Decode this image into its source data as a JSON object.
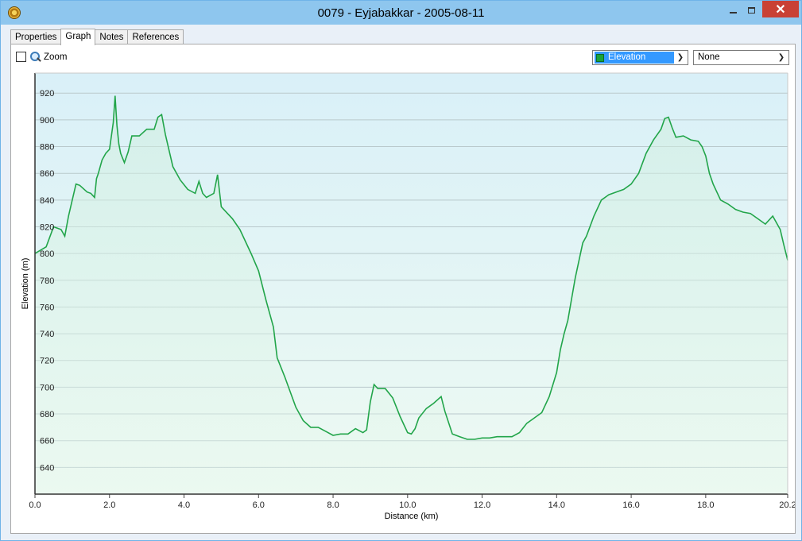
{
  "window": {
    "title": "0079 - Eyjabakkar - 2005-08-11",
    "close_glyph": "✕"
  },
  "tabs": [
    {
      "label": "Properties",
      "active": false
    },
    {
      "label": "Graph",
      "active": true
    },
    {
      "label": "Notes",
      "active": false
    },
    {
      "label": "References",
      "active": false
    }
  ],
  "toolbar": {
    "zoom_label": "Zoom",
    "zoom_checked": false,
    "primary_select": {
      "value": "Elevation",
      "swatch_color": "#1aa33a"
    },
    "secondary_select": {
      "value": "None"
    }
  },
  "chart_data": {
    "type": "area",
    "title": "",
    "xlabel": "Distance  (km)",
    "ylabel": "Elevation (m)",
    "xlim": [
      0,
      20.2
    ],
    "ylim": [
      620,
      935
    ],
    "xticks": [
      "0.0",
      "2.0",
      "4.0",
      "6.0",
      "8.0",
      "10.0",
      "12.0",
      "14.0",
      "16.0",
      "18.0",
      "20.2"
    ],
    "yticks": [
      "640",
      "660",
      "680",
      "700",
      "720",
      "740",
      "760",
      "780",
      "800",
      "820",
      "840",
      "860",
      "880",
      "900",
      "920"
    ],
    "grid": true,
    "line_color": "#22a54a",
    "background_top": "#d9f0f8",
    "background_bottom": "#eefaf2",
    "series": [
      {
        "x": [
          0.0,
          0.3,
          0.5,
          0.7,
          0.8,
          0.9,
          1.0,
          1.1,
          1.2,
          1.4,
          1.5,
          1.6,
          1.65,
          1.7,
          1.8,
          1.9,
          2.0,
          2.1,
          2.15,
          2.2,
          2.25,
          2.3,
          2.4,
          2.5,
          2.6,
          2.8,
          3.0,
          3.2,
          3.3,
          3.4,
          3.5,
          3.7,
          3.9,
          4.1,
          4.3,
          4.4,
          4.5,
          4.6,
          4.8,
          4.9,
          5.0,
          5.3,
          5.5,
          5.8,
          6.0,
          6.2,
          6.4,
          6.5,
          6.7,
          7.0,
          7.2,
          7.4,
          7.6,
          7.8,
          8.0,
          8.2,
          8.4,
          8.6,
          8.8,
          8.9,
          9.0,
          9.1,
          9.2,
          9.4,
          9.6,
          9.8,
          10.0,
          10.1,
          10.2,
          10.3,
          10.5,
          10.7,
          10.9,
          11.0,
          11.2,
          11.4,
          11.6,
          11.8,
          12.0,
          12.2,
          12.4,
          12.6,
          12.8,
          13.0,
          13.2,
          13.4,
          13.6,
          13.8,
          14.0,
          14.1,
          14.2,
          14.3,
          14.4,
          14.5,
          14.6,
          14.7,
          14.8,
          15.0,
          15.2,
          15.4,
          15.6,
          15.8,
          16.0,
          16.2,
          16.4,
          16.6,
          16.8,
          16.9,
          17.0,
          17.1,
          17.2,
          17.4,
          17.6,
          17.8,
          17.9,
          18.0,
          18.1,
          18.2,
          18.4,
          18.6,
          18.8,
          19.0,
          19.2,
          19.4,
          19.6,
          19.8,
          20.0,
          20.1,
          20.2
        ],
        "y": [
          800,
          805,
          820,
          818,
          813,
          828,
          840,
          852,
          851,
          846,
          845,
          842,
          856,
          860,
          870,
          875,
          878,
          898,
          918,
          896,
          882,
          875,
          868,
          876,
          888,
          888,
          893,
          893,
          902,
          904,
          889,
          865,
          855,
          848,
          845,
          854,
          845,
          842,
          845,
          859,
          835,
          826,
          818,
          800,
          787,
          765,
          745,
          722,
          708,
          685,
          675,
          670,
          670,
          667,
          664,
          665,
          665,
          669,
          666,
          668,
          689,
          702,
          699,
          699,
          692,
          678,
          666,
          665,
          669,
          677,
          684,
          688,
          693,
          682,
          665,
          663,
          661,
          661,
          662,
          662,
          663,
          663,
          663,
          666,
          673,
          677,
          681,
          693,
          711,
          728,
          740,
          750,
          766,
          782,
          795,
          808,
          813,
          828,
          840,
          844,
          846,
          848,
          852,
          860,
          875,
          885,
          893,
          901,
          902,
          894,
          887,
          888,
          885,
          884,
          880,
          873,
          860,
          852,
          840,
          837,
          833,
          831,
          830,
          826,
          822,
          828,
          818,
          806,
          795
        ]
      }
    ]
  }
}
